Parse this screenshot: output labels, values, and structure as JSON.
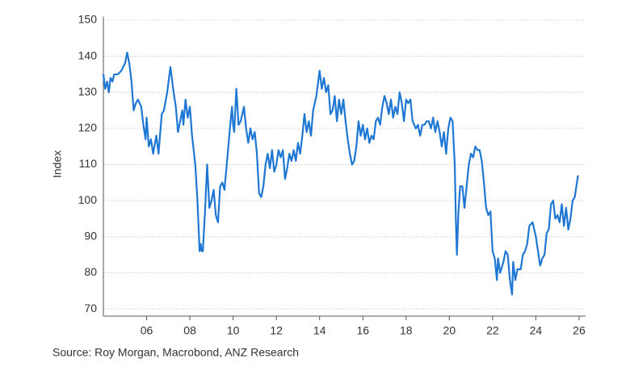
{
  "chart_data": {
    "type": "line",
    "y_label": "Index",
    "source": "Source: Roy Morgan, Macrobond, ANZ Research",
    "xlim": [
      2004,
      2026.3
    ],
    "ylim": [
      68,
      151
    ],
    "xticks": [
      {
        "value": 2006,
        "label": "06"
      },
      {
        "value": 2008,
        "label": "08"
      },
      {
        "value": 2010,
        "label": "10"
      },
      {
        "value": 2012,
        "label": "12"
      },
      {
        "value": 2014,
        "label": "14"
      },
      {
        "value": 2016,
        "label": "16"
      },
      {
        "value": 2018,
        "label": "18"
      },
      {
        "value": 2020,
        "label": "20"
      },
      {
        "value": 2022,
        "label": "22"
      },
      {
        "value": 2024,
        "label": "24"
      },
      {
        "value": 2026,
        "label": "26"
      }
    ],
    "yticks": [
      70,
      80,
      90,
      100,
      110,
      120,
      130,
      140,
      150
    ],
    "grid": true,
    "series": [
      {
        "color": "#1f77d4",
        "x": [
          2004.0,
          2004.08,
          2004.17,
          2004.25,
          2004.33,
          2004.42,
          2004.5,
          2004.67,
          2004.83,
          2005.0,
          2005.1,
          2005.2,
          2005.3,
          2005.4,
          2005.5,
          2005.6,
          2005.75,
          2005.85,
          2005.95,
          2006.0,
          2006.1,
          2006.2,
          2006.3,
          2006.45,
          2006.55,
          2006.7,
          2006.8,
          2006.95,
          2007.1,
          2007.25,
          2007.35,
          2007.45,
          2007.55,
          2007.65,
          2007.7,
          2007.8,
          2007.9,
          2008.0,
          2008.1,
          2008.25,
          2008.35,
          2008.45,
          2008.5,
          2008.55,
          2008.6,
          2008.7,
          2008.8,
          2008.9,
          2009.0,
          2009.1,
          2009.2,
          2009.3,
          2009.4,
          2009.5,
          2009.6,
          2009.75,
          2009.85,
          2009.95,
          2010.0,
          2010.05,
          2010.15,
          2010.25,
          2010.35,
          2010.5,
          2010.6,
          2010.7,
          2010.8,
          2010.9,
          2011.0,
          2011.1,
          2011.2,
          2011.3,
          2011.4,
          2011.5,
          2011.6,
          2011.7,
          2011.8,
          2011.9,
          2012.0,
          2012.1,
          2012.2,
          2012.3,
          2012.4,
          2012.5,
          2012.6,
          2012.7,
          2012.8,
          2012.9,
          2013.0,
          2013.1,
          2013.2,
          2013.3,
          2013.4,
          2013.5,
          2013.6,
          2013.7,
          2013.85,
          2014.0,
          2014.1,
          2014.2,
          2014.3,
          2014.4,
          2014.5,
          2014.6,
          2014.7,
          2014.8,
          2014.9,
          2015.0,
          2015.1,
          2015.2,
          2015.3,
          2015.4,
          2015.5,
          2015.6,
          2015.7,
          2015.8,
          2015.9,
          2016.0,
          2016.1,
          2016.2,
          2016.3,
          2016.4,
          2016.5,
          2016.6,
          2016.7,
          2016.8,
          2016.9,
          2017.0,
          2017.1,
          2017.2,
          2017.3,
          2017.4,
          2017.5,
          2017.6,
          2017.7,
          2017.8,
          2017.9,
          2018.0,
          2018.1,
          2018.2,
          2018.3,
          2018.45,
          2018.55,
          2018.65,
          2018.75,
          2018.85,
          2018.95,
          2019.05,
          2019.15,
          2019.25,
          2019.35,
          2019.45,
          2019.55,
          2019.65,
          2019.75,
          2019.85,
          2019.95,
          2020.05,
          2020.15,
          2020.25,
          2020.3,
          2020.35,
          2020.42,
          2020.5,
          2020.6,
          2020.7,
          2020.8,
          2020.9,
          2021.0,
          2021.1,
          2021.2,
          2021.3,
          2021.4,
          2021.5,
          2021.6,
          2021.7,
          2021.8,
          2021.9,
          2022.0,
          2022.1,
          2022.2,
          2022.25,
          2022.35,
          2022.5,
          2022.6,
          2022.7,
          2022.8,
          2022.9,
          2022.95,
          2023.05,
          2023.15,
          2023.3,
          2023.4,
          2023.5,
          2023.6,
          2023.7,
          2023.85,
          2024.0,
          2024.1,
          2024.2,
          2024.3,
          2024.4,
          2024.5,
          2024.6,
          2024.7,
          2024.8,
          2024.9,
          2025.0,
          2025.1,
          2025.2,
          2025.3,
          2025.4,
          2025.5,
          2025.6,
          2025.7,
          2025.8,
          2025.95
        ],
        "values": [
          135,
          131,
          133,
          130,
          134,
          133,
          135,
          135,
          136,
          138,
          141,
          138,
          133,
          125,
          127,
          128,
          126,
          121,
          117,
          123,
          115,
          117,
          113,
          118,
          113,
          124,
          125,
          130,
          137,
          130,
          126,
          119,
          122,
          125,
          121,
          128,
          123,
          126,
          118,
          110,
          100,
          86,
          88,
          86,
          86,
          97,
          110,
          98,
          100,
          103,
          96,
          94,
          104,
          105,
          103,
          113,
          120,
          126,
          121,
          119,
          131,
          121,
          122,
          126,
          120,
          116,
          120,
          117,
          119,
          113,
          102,
          101,
          104,
          110,
          113,
          109,
          114,
          108,
          110,
          114,
          112,
          114,
          106,
          109,
          113,
          111,
          114,
          111,
          116,
          113,
          118,
          124,
          119,
          122,
          118,
          125,
          129,
          136,
          131,
          134,
          130,
          132,
          124,
          125,
          129,
          122,
          128,
          124,
          128,
          122,
          117,
          113,
          110,
          111,
          115,
          122,
          118,
          121,
          117,
          120,
          116,
          118,
          117,
          122,
          123,
          121,
          126,
          129,
          127,
          124,
          128,
          123,
          126,
          124,
          130,
          127,
          122,
          128,
          127,
          128,
          122,
          120,
          121,
          118,
          121,
          121,
          122,
          122,
          120,
          123,
          119,
          122,
          119,
          115,
          119,
          113,
          120,
          123,
          122,
          110,
          95,
          85,
          97,
          104,
          104,
          98,
          104,
          110,
          113,
          112,
          115,
          114,
          114,
          111,
          105,
          98,
          96,
          97,
          86,
          84,
          78,
          84,
          80,
          83,
          86,
          85,
          78,
          74,
          83,
          78,
          81,
          81,
          85,
          86,
          88,
          93,
          94,
          90,
          86,
          82,
          84,
          85,
          91,
          92,
          99,
          100,
          95,
          96,
          94,
          99,
          93,
          98,
          92,
          95,
          100,
          101,
          107
        ]
      }
    ]
  }
}
